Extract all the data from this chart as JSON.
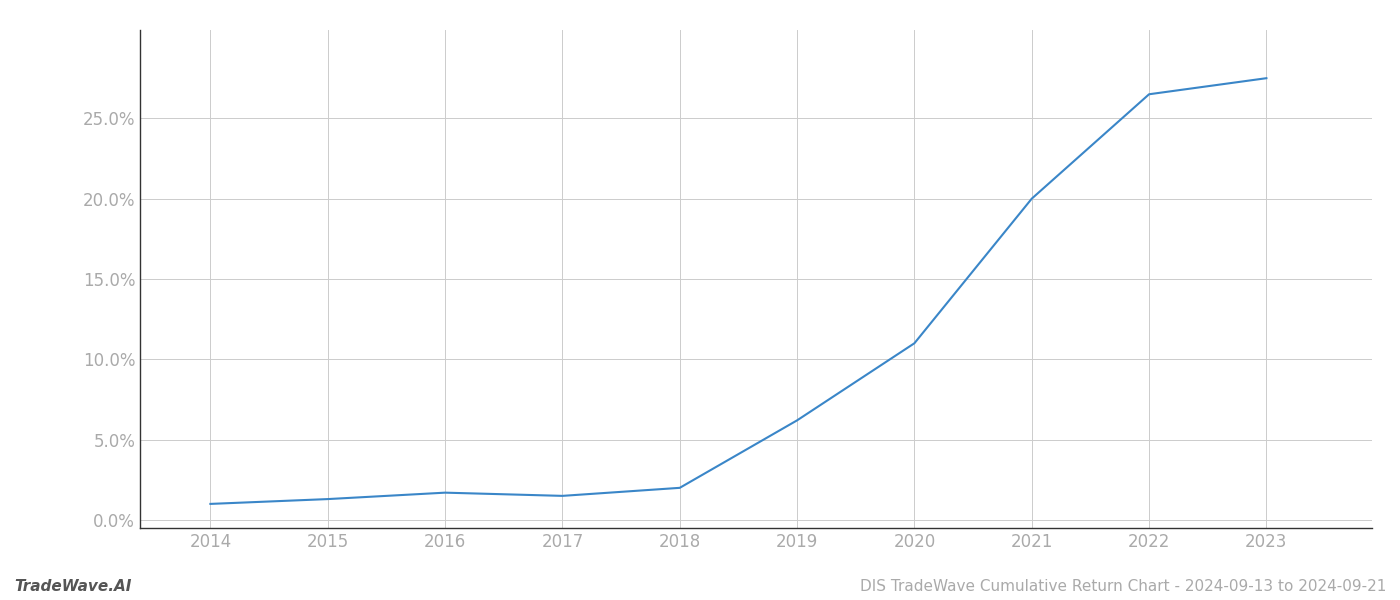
{
  "x_years": [
    2014,
    2015,
    2016,
    2017,
    2018,
    2019,
    2020,
    2021,
    2022,
    2023
  ],
  "y_values": [
    0.01,
    0.013,
    0.017,
    0.015,
    0.02,
    0.062,
    0.11,
    0.2,
    0.265,
    0.275
  ],
  "line_color": "#3a86c8",
  "line_width": 1.5,
  "background_color": "#ffffff",
  "grid_color": "#cccccc",
  "tick_label_color": "#aaaaaa",
  "footer_left": "TradeWave.AI",
  "footer_right": "DIS TradeWave Cumulative Return Chart - 2024-09-13 to 2024-09-21",
  "ylim": [
    -0.005,
    0.305
  ],
  "ytick_values": [
    0.0,
    0.05,
    0.1,
    0.15,
    0.2,
    0.25
  ],
  "xtick_values": [
    2014,
    2015,
    2016,
    2017,
    2018,
    2019,
    2020,
    2021,
    2022,
    2023
  ],
  "footer_fontsize": 11,
  "tick_fontsize": 12,
  "left_spine_color": "#333333"
}
